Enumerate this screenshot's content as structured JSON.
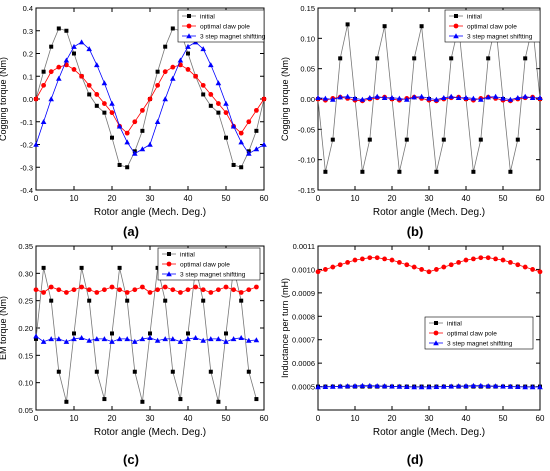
{
  "chart_data": [
    {
      "panel": "(a)",
      "type": "line",
      "xlabel": "Rotor angle (Mech. Deg.)",
      "ylabel": "Cogging torque (Nm)",
      "xlim": [
        0,
        60
      ],
      "ylim": [
        -0.4,
        0.4
      ],
      "xticks": [
        0,
        10,
        20,
        30,
        40,
        50,
        60
      ],
      "yticks": [
        -0.4,
        -0.3,
        -0.2,
        -0.1,
        0.0,
        0.1,
        0.2,
        0.3,
        0.4
      ],
      "ytick_labels": [
        "-0.4",
        "-0.3",
        "-0.2",
        "-0.1",
        "0.0",
        "0.1",
        "0.2",
        "0.3",
        "0.4"
      ],
      "legend_position": "top-right",
      "series": [
        {
          "name": "initial",
          "color": "#000000",
          "marker": "square",
          "x": [
            0,
            2,
            4,
            6,
            8,
            10,
            12,
            14,
            16,
            18,
            20,
            22,
            24,
            26,
            28,
            30,
            32,
            34,
            36,
            38,
            40,
            42,
            44,
            46,
            48,
            50,
            52,
            54,
            56,
            58,
            60
          ],
          "y": [
            0.0,
            0.12,
            0.23,
            0.31,
            0.3,
            0.2,
            0.1,
            0.02,
            -0.03,
            -0.06,
            -0.17,
            -0.29,
            -0.3,
            -0.23,
            -0.14,
            0.0,
            0.12,
            0.23,
            0.31,
            0.3,
            0.2,
            0.1,
            0.02,
            -0.03,
            -0.06,
            -0.17,
            -0.29,
            -0.3,
            -0.23,
            -0.14,
            0.0
          ]
        },
        {
          "name": "optimal claw pole",
          "color": "#ff0000",
          "marker": "circle",
          "x": [
            0,
            2,
            4,
            6,
            8,
            10,
            12,
            14,
            16,
            18,
            20,
            22,
            24,
            26,
            28,
            30,
            32,
            34,
            36,
            38,
            40,
            42,
            44,
            46,
            48,
            50,
            52,
            54,
            56,
            58,
            60
          ],
          "y": [
            0.0,
            0.06,
            0.12,
            0.14,
            0.15,
            0.13,
            0.1,
            0.06,
            0.02,
            -0.02,
            -0.06,
            -0.12,
            -0.15,
            -0.1,
            -0.05,
            0.0,
            0.06,
            0.12,
            0.14,
            0.15,
            0.13,
            0.1,
            0.06,
            0.02,
            -0.02,
            -0.06,
            -0.12,
            -0.15,
            -0.1,
            -0.05,
            0.0
          ]
        },
        {
          "name": "3 step magnet shiftting",
          "color": "#0000ff",
          "marker": "triangle",
          "x": [
            0,
            2,
            4,
            6,
            8,
            10,
            12,
            14,
            16,
            18,
            20,
            22,
            24,
            26,
            28,
            30,
            32,
            34,
            36,
            38,
            40,
            42,
            44,
            46,
            48,
            50,
            52,
            54,
            56,
            58,
            60
          ],
          "y": [
            -0.2,
            -0.1,
            0.0,
            0.09,
            0.17,
            0.23,
            0.25,
            0.22,
            0.15,
            0.07,
            -0.02,
            -0.12,
            -0.19,
            -0.24,
            -0.22,
            -0.2,
            -0.1,
            0.0,
            0.09,
            0.17,
            0.23,
            0.25,
            0.22,
            0.15,
            0.07,
            -0.02,
            -0.12,
            -0.19,
            -0.24,
            -0.22,
            -0.2
          ]
        }
      ]
    },
    {
      "panel": "(b)",
      "type": "line",
      "xlabel": "Rotor angle (Mech. Deg.)",
      "ylabel": "Cogging torque (Nm)",
      "xlim": [
        0,
        60
      ],
      "ylim": [
        -0.15,
        0.15
      ],
      "xticks": [
        0,
        10,
        20,
        30,
        40,
        50,
        60
      ],
      "yticks": [
        -0.15,
        -0.1,
        -0.05,
        0.0,
        0.05,
        0.1,
        0.15
      ],
      "ytick_labels": [
        "-0.15",
        "-0.10",
        "-0.05",
        "0.00",
        "0.05",
        "0.10",
        "0.15"
      ],
      "legend_position": "top-right",
      "series": [
        {
          "name": "initial",
          "color": "#000000",
          "marker": "square",
          "x": [
            0,
            2,
            4,
            6,
            8,
            10,
            12,
            14,
            16,
            18,
            20,
            22,
            24,
            26,
            28,
            30,
            32,
            34,
            36,
            38,
            40,
            42,
            44,
            46,
            48,
            50,
            52,
            54,
            56,
            58,
            60
          ],
          "y": [
            0.0,
            -0.12,
            -0.067,
            0.067,
            0.123,
            0.0,
            -0.12,
            -0.067,
            0.067,
            0.12,
            0.0,
            -0.12,
            -0.067,
            0.067,
            0.12,
            0.0,
            -0.12,
            -0.067,
            0.067,
            0.12,
            0.0,
            -0.12,
            -0.067,
            0.067,
            0.123,
            0.0,
            -0.12,
            -0.067,
            0.067,
            0.12,
            0.0
          ]
        },
        {
          "name": "optimal claw pole",
          "color": "#ff0000",
          "marker": "circle",
          "x": [
            0,
            2,
            4,
            6,
            8,
            10,
            12,
            14,
            16,
            18,
            20,
            22,
            24,
            26,
            28,
            30,
            32,
            34,
            36,
            38,
            40,
            42,
            44,
            46,
            48,
            50,
            52,
            54,
            56,
            58,
            60
          ],
          "y": [
            0.0,
            -0.002,
            0.001,
            0.003,
            0.001,
            -0.002,
            -0.003,
            0.0,
            0.002,
            0.003,
            0.0,
            -0.002,
            0.001,
            0.003,
            0.001,
            -0.002,
            -0.003,
            0.0,
            0.002,
            0.003,
            0.0,
            -0.002,
            0.001,
            0.003,
            0.001,
            -0.002,
            -0.003,
            0.0,
            0.002,
            0.003,
            0.0
          ]
        },
        {
          "name": "3 step magnet shiftting",
          "color": "#0000ff",
          "marker": "triangle",
          "x": [
            0,
            2,
            4,
            6,
            8,
            10,
            12,
            14,
            16,
            18,
            20,
            22,
            24,
            26,
            28,
            30,
            32,
            34,
            36,
            38,
            40,
            42,
            44,
            46,
            48,
            50,
            52,
            54,
            56,
            58,
            60
          ],
          "y": [
            0.002,
            0.001,
            -0.001,
            0.003,
            0.004,
            0.001,
            -0.001,
            0.002,
            0.004,
            0.002,
            0.002,
            0.001,
            -0.001,
            0.003,
            0.004,
            0.001,
            -0.001,
            0.002,
            0.004,
            0.002,
            0.002,
            0.001,
            -0.001,
            0.003,
            0.004,
            0.001,
            -0.001,
            0.002,
            0.004,
            0.002,
            0.002
          ]
        }
      ]
    },
    {
      "panel": "(c)",
      "type": "line",
      "xlabel": "Rotor angle (Mech. Deg.)",
      "ylabel": "EM torque (Nm)",
      "xlim": [
        0,
        60
      ],
      "ylim": [
        0.05,
        0.35
      ],
      "xticks": [
        0,
        10,
        20,
        30,
        40,
        50,
        60
      ],
      "yticks": [
        0.05,
        0.1,
        0.15,
        0.2,
        0.25,
        0.3,
        0.35
      ],
      "ytick_labels": [
        "0.05",
        "0.10",
        "0.15",
        "0.20",
        "0.25",
        "0.30",
        "0.35"
      ],
      "legend_position": "top-right",
      "series": [
        {
          "name": "initial",
          "color": "#000000",
          "marker": "square",
          "x": [
            0,
            2,
            4,
            6,
            8,
            10,
            12,
            14,
            16,
            18,
            20,
            22,
            24,
            26,
            28,
            30,
            32,
            34,
            36,
            38,
            40,
            42,
            44,
            46,
            48,
            50,
            52,
            54,
            56,
            58
          ],
          "y": [
            0.18,
            0.31,
            0.25,
            0.12,
            0.065,
            0.19,
            0.31,
            0.25,
            0.12,
            0.07,
            0.19,
            0.31,
            0.25,
            0.12,
            0.065,
            0.19,
            0.31,
            0.25,
            0.12,
            0.07,
            0.19,
            0.31,
            0.25,
            0.12,
            0.065,
            0.19,
            0.31,
            0.25,
            0.12,
            0.07
          ]
        },
        {
          "name": "optimal claw pole",
          "color": "#ff0000",
          "marker": "circle",
          "x": [
            0,
            2,
            4,
            6,
            8,
            10,
            12,
            14,
            16,
            18,
            20,
            22,
            24,
            26,
            28,
            30,
            32,
            34,
            36,
            38,
            40,
            42,
            44,
            46,
            48,
            50,
            52,
            54,
            56,
            58
          ],
          "y": [
            0.27,
            0.265,
            0.275,
            0.27,
            0.265,
            0.27,
            0.275,
            0.27,
            0.265,
            0.27,
            0.275,
            0.27,
            0.265,
            0.27,
            0.275,
            0.265,
            0.27,
            0.275,
            0.27,
            0.265,
            0.27,
            0.275,
            0.27,
            0.265,
            0.27,
            0.275,
            0.27,
            0.265,
            0.27,
            0.275
          ]
        },
        {
          "name": "3 step magnet shiftting",
          "color": "#0000ff",
          "marker": "triangle",
          "x": [
            0,
            2,
            4,
            6,
            8,
            10,
            12,
            14,
            16,
            18,
            20,
            22,
            24,
            26,
            28,
            30,
            32,
            34,
            36,
            38,
            40,
            42,
            44,
            46,
            48,
            50,
            52,
            54,
            56,
            58
          ],
          "y": [
            0.185,
            0.175,
            0.18,
            0.18,
            0.175,
            0.18,
            0.182,
            0.177,
            0.18,
            0.18,
            0.175,
            0.18,
            0.18,
            0.175,
            0.18,
            0.182,
            0.177,
            0.18,
            0.18,
            0.175,
            0.18,
            0.182,
            0.177,
            0.18,
            0.18,
            0.175,
            0.18,
            0.182,
            0.177,
            0.178
          ]
        }
      ]
    },
    {
      "panel": "(d)",
      "type": "line",
      "xlabel": "Rotor angle (Mech. Deg.)",
      "ylabel": "Inductance per turn (mH)",
      "xlim": [
        0,
        60
      ],
      "ylim": [
        0.0004,
        0.0011
      ],
      "xticks": [
        0,
        10,
        20,
        30,
        40,
        50,
        60
      ],
      "yticks": [
        0.0005,
        0.0006,
        0.0007,
        0.0008,
        0.0009,
        0.001,
        0.0011
      ],
      "ytick_labels": [
        "0.0005",
        "0.0006",
        "0.0007",
        "0.0008",
        "0.0009",
        "0.0010",
        "0.0011"
      ],
      "legend_position": "center-right",
      "series": [
        {
          "name": "initial",
          "color": "#000000",
          "marker": "square",
          "x": [
            0,
            2,
            4,
            6,
            8,
            10,
            12,
            14,
            16,
            18,
            20,
            22,
            24,
            26,
            28,
            30,
            32,
            34,
            36,
            38,
            40,
            42,
            44,
            46,
            48,
            50,
            52,
            54,
            56,
            58,
            60
          ],
          "y": [
            0.0005,
            0.0005,
            0.0005,
            0.0005,
            0.0005,
            0.0005,
            0.0005,
            0.0005,
            0.0005,
            0.0005,
            0.0005,
            0.0005,
            0.0005,
            0.0005,
            0.0005,
            0.0005,
            0.0005,
            0.0005,
            0.0005,
            0.0005,
            0.0005,
            0.0005,
            0.0005,
            0.0005,
            0.0005,
            0.0005,
            0.0005,
            0.0005,
            0.0005,
            0.0005,
            0.0005
          ]
        },
        {
          "name": "optimal claw pole",
          "color": "#ff0000",
          "marker": "circle",
          "x": [
            0,
            2,
            4,
            6,
            8,
            10,
            12,
            14,
            16,
            18,
            20,
            22,
            24,
            26,
            28,
            30,
            32,
            34,
            36,
            38,
            40,
            42,
            44,
            46,
            48,
            50,
            52,
            54,
            56,
            58,
            60
          ],
          "y": [
            0.00099,
            0.001,
            0.00101,
            0.00102,
            0.00103,
            0.00104,
            0.001045,
            0.00105,
            0.00105,
            0.001045,
            0.00104,
            0.00103,
            0.00102,
            0.00101,
            0.001,
            0.00099,
            0.001,
            0.00101,
            0.00102,
            0.00103,
            0.00104,
            0.001045,
            0.00105,
            0.00105,
            0.001045,
            0.00104,
            0.00103,
            0.00102,
            0.00101,
            0.001,
            0.00099
          ]
        },
        {
          "name": "3 step magnet shiftting",
          "color": "#0000ff",
          "marker": "triangle",
          "x": [
            0,
            2,
            4,
            6,
            8,
            10,
            12,
            14,
            16,
            18,
            20,
            22,
            24,
            26,
            28,
            30,
            32,
            34,
            36,
            38,
            40,
            42,
            44,
            46,
            48,
            50,
            52,
            54,
            56,
            58,
            60
          ],
          "y": [
            0.000498,
            0.000499,
            0.0005,
            0.000501,
            0.000502,
            0.000503,
            0.000504,
            0.000504,
            0.000503,
            0.000502,
            0.000501,
            0.0005,
            0.000499,
            0.000498,
            0.000498,
            0.000498,
            0.000499,
            0.0005,
            0.000501,
            0.000502,
            0.000503,
            0.000504,
            0.000504,
            0.000503,
            0.000502,
            0.000501,
            0.0005,
            0.000499,
            0.000498,
            0.000498,
            0.000498
          ]
        }
      ]
    }
  ],
  "panel_labels": [
    "(a)",
    "(b)",
    "(c)",
    "(d)"
  ]
}
